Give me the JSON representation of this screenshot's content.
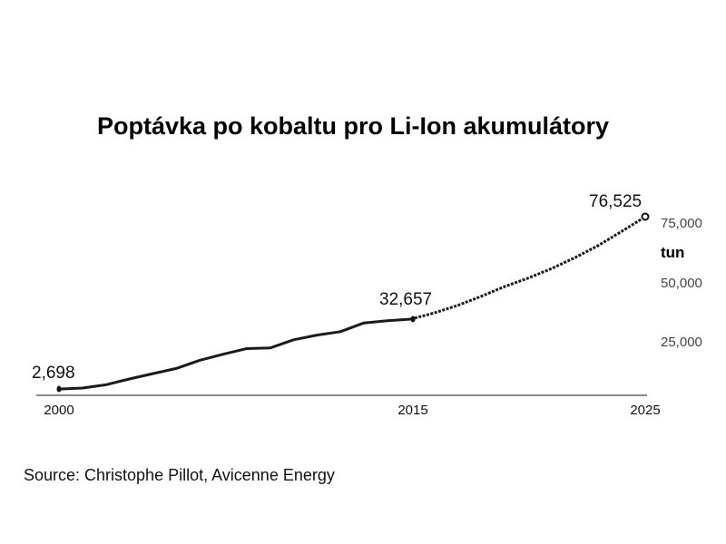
{
  "chart_data": {
    "type": "line",
    "title": "Poptávka po kobaltu pro Li-Ion akumulátory",
    "xlabel": "",
    "ylabel": "tun",
    "x_ticks": [
      "2000",
      "2015",
      "2025"
    ],
    "y_ticks": [
      "25,000",
      "50,000",
      "75,000"
    ],
    "ylim": [
      0,
      80000
    ],
    "xlim": [
      2000,
      2025
    ],
    "grid": false,
    "legend": null,
    "series": [
      {
        "name": "historical",
        "style": "solid",
        "x": [
          2000,
          2001,
          2002,
          2003,
          2004,
          2005,
          2006,
          2007,
          2008,
          2009,
          2010,
          2011,
          2012,
          2013,
          2014,
          2015
        ],
        "values": [
          2698,
          3100,
          4500,
          7000,
          9300,
          11500,
          15000,
          17600,
          20000,
          20300,
          23800,
          25800,
          27300,
          31000,
          32000,
          32657
        ]
      },
      {
        "name": "forecast",
        "style": "dotted",
        "x": [
          2015,
          2016,
          2017,
          2018,
          2019,
          2020,
          2021,
          2022,
          2023,
          2024,
          2025
        ],
        "values": [
          32657,
          35300,
          38500,
          42400,
          46600,
          50200,
          54300,
          59000,
          64200,
          70300,
          76525
        ]
      }
    ],
    "annotations": [
      {
        "x": 2000,
        "label": "2,698"
      },
      {
        "x": 2015,
        "label": "32,657"
      },
      {
        "x": 2025,
        "label": "76,525"
      }
    ]
  },
  "labels": {
    "title": "Poptávka po kobaltu pro Li-Ion akumulátory",
    "unit": "tun",
    "y_tick_75": "75,000",
    "y_tick_50": "50,000",
    "y_tick_25": "25,000",
    "x_tick_2000": "2000",
    "x_tick_2015": "2015",
    "x_tick_2025": "2025",
    "ann_2000": "2,698",
    "ann_2015": "32,657",
    "ann_2025": "76,525",
    "source": "Source: Christophe Pillot, Avicenne Energy"
  }
}
